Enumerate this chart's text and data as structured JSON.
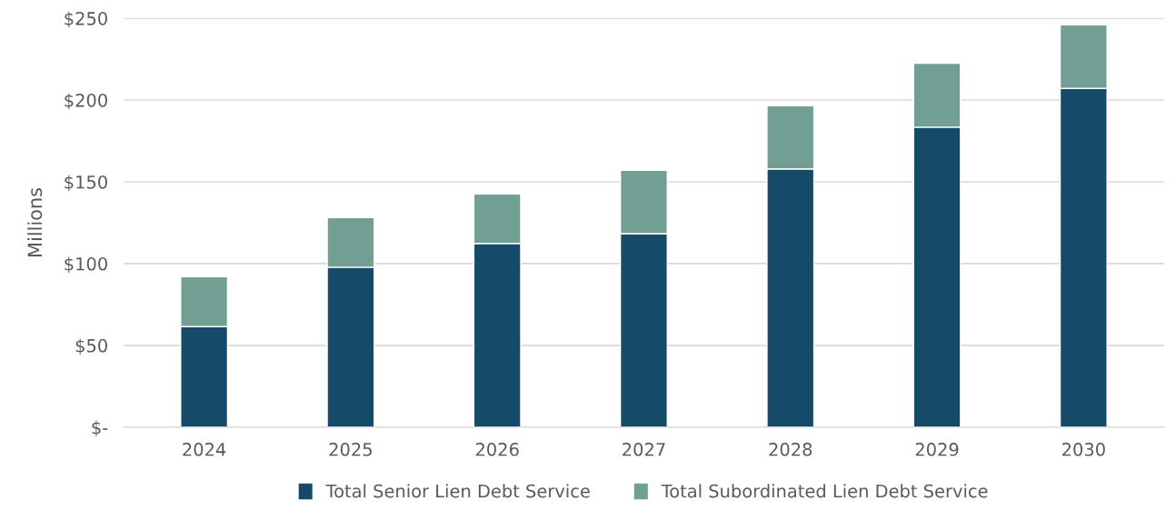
{
  "chart_data": {
    "type": "bar",
    "stacked": true,
    "ylabel": "Millions",
    "categories": [
      "2024",
      "2025",
      "2026",
      "2027",
      "2028",
      "2029",
      "2030"
    ],
    "series": [
      {
        "name": "Total Senior Lien Debt Service",
        "color": "#164a69",
        "values": [
          61.5,
          97.8,
          112.3,
          118.3,
          157.9,
          183.4,
          207.1
        ]
      },
      {
        "name": "Total Subordinated Lien Debt Service",
        "color": "#719f94",
        "values": [
          30.5,
          30.3,
          30.3,
          38.8,
          38.6,
          39.1,
          38.9
        ]
      }
    ],
    "ylim": [
      0,
      250
    ],
    "yticks": [
      {
        "value": 0,
        "label": "$-"
      },
      {
        "value": 50,
        "label": "$50"
      },
      {
        "value": 100,
        "label": "$100"
      },
      {
        "value": 150,
        "label": "$150"
      },
      {
        "value": 200,
        "label": "$200"
      },
      {
        "value": 250,
        "label": "$250"
      }
    ],
    "grid": "y",
    "legend": "bottom"
  }
}
